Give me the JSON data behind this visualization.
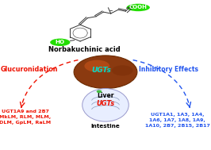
{
  "title": "Norbakuchinic acid",
  "ho_label": "HO",
  "cooh_label": "COOH",
  "liver_label": "Liver",
  "intestine_label": "Intestine",
  "ugts_liver": "UGTs",
  "ugts_intestine": "UGTs",
  "glucuronidation_label": "Glucuronidation",
  "inhibitory_label": "Inhibitory Effects",
  "left_ugt_line1": "UGT1A9 and 2B7",
  "left_ugt_line2": "MkLM, RLM, MLM,",
  "left_ugt_line3": "DLM, GpLM, RaLM",
  "right_ugt_line1": "UGT1A1, 1A3, 1A4,",
  "right_ugt_line2": "1A6, 1A7, 1A8, 1A9,",
  "right_ugt_line3": "1A10, 2B7, 2B15, 2B17",
  "bg_color": "#ffffff",
  "green_color": "#22dd00",
  "red_color": "#ee1100",
  "blue_color": "#2255ee",
  "liver_brown": "#8B3A10",
  "liver_highlight": "#b85020",
  "intestine_fill": "#e8eeff",
  "intestine_edge": "#9999cc",
  "struct_color": "#333333"
}
